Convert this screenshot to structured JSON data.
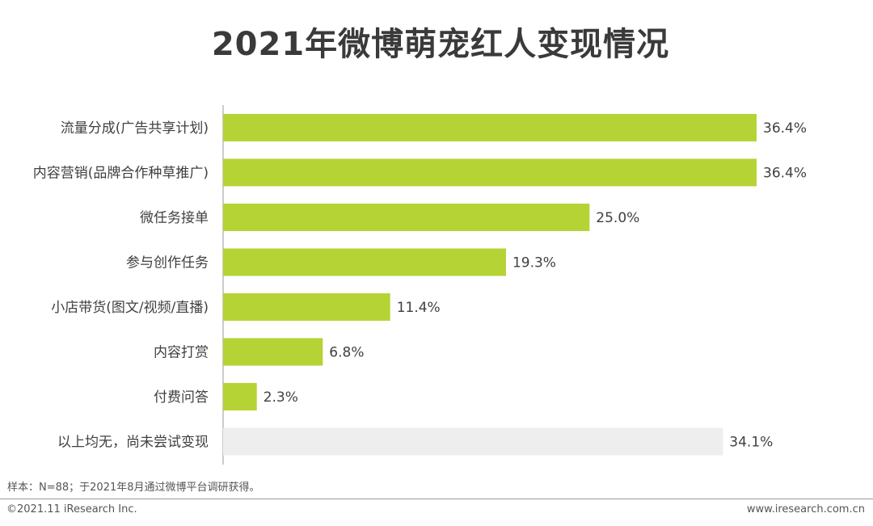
{
  "header": {
    "title": "2021年微博萌宠红人变现情况"
  },
  "chart_data": {
    "type": "bar",
    "orientation": "horizontal",
    "title": "2021年微博萌宠红人变现情况",
    "categories": [
      "流量分成(广告共享计划)",
      "内容营销(品牌合作种草推广)",
      "微任务接单",
      "参与创作任务",
      "小店带货(图文/视频/直播)",
      "内容打赏",
      "付费问答",
      "以上均无，尚未尝试变现"
    ],
    "values": [
      36.4,
      36.4,
      25.0,
      19.3,
      11.4,
      6.8,
      2.3,
      34.1
    ],
    "value_labels": [
      "36.4%",
      "36.4%",
      "25.0%",
      "19.3%",
      "11.4%",
      "6.8%",
      "2.3%",
      "34.1%"
    ],
    "colors": [
      "#b5d334",
      "#b5d334",
      "#b5d334",
      "#b5d334",
      "#b5d334",
      "#b5d334",
      "#b5d334",
      "#eeeeee"
    ],
    "xlim": [
      0,
      40
    ],
    "grid": false,
    "unit": "%"
  },
  "footnote": "样本：N=88；于2021年8月通过微博平台调研获得。",
  "footer": {
    "copyright": "©2021.11 iResearch Inc.",
    "website": "www.iresearch.com.cn"
  }
}
